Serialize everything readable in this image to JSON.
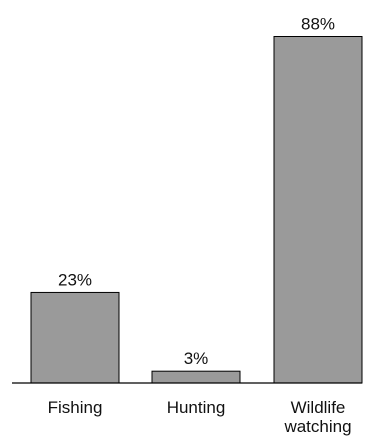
{
  "chart_data": {
    "type": "bar",
    "categories": [
      [
        "Fishing"
      ],
      [
        "Hunting"
      ],
      [
        "Wildlife",
        "watching"
      ]
    ],
    "values": [
      23,
      3,
      88
    ],
    "value_labels": [
      "23%",
      "3%",
      "88%"
    ],
    "title": "",
    "xlabel": "",
    "ylabel": "",
    "ylim": [
      0,
      100
    ],
    "grid": false,
    "colors": {
      "bar_fill": "#9a9a9a",
      "bar_stroke": "#000000",
      "axis": "#000000",
      "text": "#111111"
    }
  }
}
